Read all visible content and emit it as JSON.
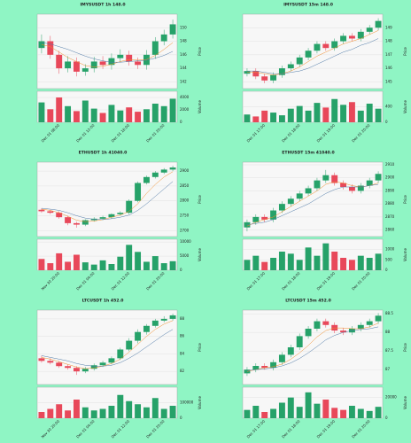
{
  "chart_data": [
    {
      "type": "candlestick",
      "title": "IMYSUSDT 1h 148.0",
      "ylabel": "Price",
      "volume_label": "Volume",
      "up_color": "#26a269",
      "down_color": "#e8485a",
      "categories": [
        null,
        null,
        "Dec 01 08:00",
        null,
        null,
        null,
        "Dec 01 12:00",
        null,
        null,
        null,
        "Dec 01 16:00",
        null,
        null,
        null,
        "Dec 01 20:00",
        null
      ],
      "open": [
        147,
        148,
        146,
        144,
        145,
        143.5,
        144,
        145,
        144.5,
        145.5,
        146,
        145,
        144.5,
        146,
        148,
        149
      ],
      "high": [
        149,
        148.8,
        146.6,
        145.8,
        145.6,
        144.6,
        145.7,
        145.8,
        146.2,
        146.8,
        146.6,
        145.6,
        146.7,
        148.6,
        149.7,
        151.2
      ],
      "low": [
        146.2,
        145.4,
        143.2,
        143.4,
        142.8,
        142.9,
        143.4,
        143.9,
        143.8,
        144.9,
        144.4,
        143.9,
        143.8,
        145.4,
        147.4,
        148.4
      ],
      "close": [
        148,
        146,
        144,
        145,
        143.5,
        144,
        145,
        144.5,
        145.5,
        146,
        145,
        144.5,
        146,
        148,
        149,
        150.5
      ],
      "volume": [
        3200,
        2100,
        4000,
        2600,
        1800,
        3500,
        2200,
        1500,
        2800,
        1900,
        2400,
        1700,
        2100,
        3000,
        2600,
        3800
      ],
      "series": [
        {
          "color": "#f28e2b",
          "values": [
            147.5,
            147.2,
            146.4,
            145.6,
            145,
            144.4,
            144.2,
            144.3,
            144.6,
            145,
            145.3,
            145.2,
            145.3,
            145.9,
            146.8,
            147.8
          ]
        },
        {
          "color": "#4e79a7",
          "values": [
            147.8,
            147.6,
            147.2,
            146.8,
            146.3,
            145.8,
            145.4,
            145.1,
            144.9,
            144.9,
            145,
            145.1,
            145.2,
            145.5,
            145.9,
            146.5
          ]
        }
      ],
      "ylim": [
        141,
        152
      ],
      "yticks": [
        142,
        144,
        146,
        148,
        150
      ],
      "vlim": [
        0,
        5000
      ],
      "vticks": [
        0,
        2000,
        4000
      ]
    },
    {
      "type": "candlestick",
      "title": "IMYSUSDT 15m 148.0",
      "ylabel": "Price",
      "volume_label": "Volume",
      "up_color": "#26a269",
      "down_color": "#e8485a",
      "categories": [
        null,
        null,
        "Dec 01 17:00",
        null,
        null,
        null,
        "Dec 01 18:00",
        null,
        null,
        null,
        "Dec 01 19:00",
        null,
        null,
        null,
        "Dec 01 20:00",
        null
      ],
      "open": [
        145.6,
        145.8,
        145.4,
        145.1,
        145.5,
        146,
        146.3,
        146.8,
        147.3,
        147.8,
        147.5,
        148,
        148.4,
        148.2,
        148.7,
        149
      ],
      "high": [
        146,
        146,
        145.6,
        145.7,
        146.2,
        146.5,
        147,
        147.5,
        148,
        148,
        148.2,
        148.6,
        148.6,
        148.9,
        149.2,
        149.7
      ],
      "low": [
        145.4,
        145.2,
        144.9,
        144.9,
        145.3,
        145.8,
        146.1,
        146.6,
        147.1,
        147.3,
        147.3,
        147.8,
        148,
        148,
        148.5,
        148.8
      ],
      "close": [
        145.8,
        145.4,
        145.1,
        145.5,
        146,
        146.3,
        146.8,
        147.3,
        147.8,
        147.5,
        148,
        148.4,
        148.2,
        148.7,
        149,
        149.5
      ],
      "volume": [
        200,
        150,
        300,
        250,
        180,
        350,
        420,
        300,
        500,
        380,
        600,
        450,
        520,
        300,
        480,
        350
      ],
      "series": [
        {
          "color": "#f28e2b",
          "values": [
            145.7,
            145.7,
            145.6,
            145.5,
            145.6,
            145.8,
            146.1,
            146.5,
            146.9,
            147.2,
            147.5,
            147.8,
            148,
            148.2,
            148.5,
            148.8
          ]
        },
        {
          "color": "#4e79a7",
          "values": [
            145.8,
            145.8,
            145.7,
            145.6,
            145.6,
            145.7,
            145.8,
            146,
            146.3,
            146.6,
            146.9,
            147.2,
            147.4,
            147.7,
            147.9,
            148.2
          ]
        }
      ],
      "ylim": [
        144.5,
        150
      ],
      "yticks": [
        145,
        146,
        147,
        148,
        149
      ],
      "vlim": [
        0,
        800
      ],
      "vticks": [
        0,
        400
      ]
    },
    {
      "type": "candlestick",
      "title": "ETHUSDT 1h 41040.0",
      "ylabel": "Price",
      "volume_label": "Volume",
      "up_color": "#26a269",
      "down_color": "#e8485a",
      "categories": [
        null,
        null,
        "Nov 30 20:00",
        null,
        null,
        null,
        "Dec 01 04:00",
        null,
        null,
        null,
        "Dec 01 12:00",
        null,
        null,
        null,
        "Dec 01 20:00",
        null
      ],
      "open": [
        2770,
        2765,
        2760,
        2745,
        2725,
        2720,
        2735,
        2740,
        2745,
        2755,
        2760,
        2800,
        2860,
        2880,
        2895,
        2905
      ],
      "high": [
        2775,
        2770,
        2765,
        2750,
        2730,
        2738,
        2745,
        2750,
        2758,
        2765,
        2805,
        2865,
        2885,
        2900,
        2910,
        2918
      ],
      "low": [
        2760,
        2755,
        2740,
        2718,
        2710,
        2715,
        2730,
        2735,
        2740,
        2750,
        2755,
        2795,
        2855,
        2875,
        2890,
        2900
      ],
      "close": [
        2765,
        2760,
        2745,
        2725,
        2720,
        2735,
        2740,
        2745,
        2755,
        2760,
        2800,
        2860,
        2880,
        2895,
        2905,
        2912
      ],
      "volume": [
        4000,
        2500,
        6000,
        3000,
        5500,
        2800,
        2000,
        3500,
        2200,
        4800,
        9000,
        6500,
        3000,
        5000,
        2500,
        3200
      ],
      "series": [
        {
          "color": "#f28e2b",
          "values": [
            2772,
            2768,
            2760,
            2748,
            2735,
            2730,
            2732,
            2737,
            2745,
            2752,
            2765,
            2790,
            2825,
            2855,
            2880,
            2898
          ]
        },
        {
          "color": "#4e79a7",
          "values": [
            2775,
            2772,
            2768,
            2760,
            2750,
            2742,
            2738,
            2737,
            2740,
            2745,
            2752,
            2768,
            2790,
            2815,
            2840,
            2865
          ]
        }
      ],
      "ylim": [
        2680,
        2930
      ],
      "yticks": [
        2700,
        2750,
        2800,
        2850,
        2900
      ],
      "vlim": [
        0,
        11000
      ],
      "vticks": [
        0,
        5000,
        10000
      ]
    },
    {
      "type": "candlestick",
      "title": "ETHUSDT 15m 41040.0",
      "ylabel": "Price",
      "volume_label": "Volume",
      "up_color": "#26a269",
      "down_color": "#e8485a",
      "categories": [
        null,
        null,
        "Dec 01 17:00",
        null,
        null,
        null,
        "Dec 01 18:00",
        null,
        null,
        null,
        "Dec 01 19:00",
        null,
        null,
        null,
        "Dec 01 20:00",
        null
      ],
      "open": [
        2862,
        2866,
        2870,
        2868,
        2875,
        2880,
        2884,
        2888,
        2892,
        2898,
        2902,
        2896,
        2893,
        2890,
        2894,
        2898
      ],
      "high": [
        2868,
        2872,
        2872,
        2877,
        2882,
        2886,
        2890,
        2894,
        2900,
        2906,
        2904,
        2898,
        2895,
        2896,
        2900,
        2905
      ],
      "low": [
        2859,
        2864,
        2866,
        2866,
        2873,
        2878,
        2882,
        2886,
        2890,
        2896,
        2894,
        2891,
        2888,
        2888,
        2892,
        2896
      ],
      "close": [
        2866,
        2870,
        2868,
        2875,
        2880,
        2884,
        2888,
        2892,
        2898,
        2902,
        2896,
        2893,
        2890,
        2894,
        2898,
        2903
      ],
      "volume": [
        500,
        700,
        400,
        600,
        900,
        800,
        500,
        1100,
        700,
        1300,
        900,
        600,
        500,
        700,
        600,
        800
      ],
      "series": [
        {
          "color": "#f28e2b",
          "values": [
            2863,
            2866,
            2868,
            2870,
            2874,
            2878,
            2882,
            2886,
            2890,
            2895,
            2897,
            2896,
            2894,
            2893,
            2894,
            2896
          ]
        },
        {
          "color": "#4e79a7",
          "values": [
            2864,
            2865,
            2866,
            2868,
            2871,
            2874,
            2877,
            2880,
            2884,
            2888,
            2891,
            2893,
            2893,
            2893,
            2894,
            2895
          ]
        }
      ],
      "ylim": [
        2855,
        2912
      ],
      "yticks": [
        2860,
        2870,
        2880,
        2890,
        2900,
        2910
      ],
      "vlim": [
        0,
        1500
      ],
      "vticks": [
        0,
        500,
        1000
      ]
    },
    {
      "type": "candlestick",
      "title": "LTCUSDT 1h 452.0",
      "ylabel": "Price",
      "volume_label": "Volume",
      "up_color": "#26a269",
      "down_color": "#e8485a",
      "categories": [
        null,
        null,
        "Nov 30 20:00",
        null,
        null,
        null,
        "Dec 01 04:00",
        null,
        null,
        null,
        "Dec 01 12:00",
        null,
        null,
        null,
        "Dec 01 20:00",
        null
      ],
      "open": [
        83.5,
        83.2,
        83,
        82.6,
        82.4,
        82,
        82.3,
        82.7,
        83,
        83.5,
        84.5,
        85.5,
        86.5,
        87.2,
        87.8,
        88
      ],
      "high": [
        83.8,
        83.5,
        83.2,
        82.8,
        82.6,
        82.5,
        82.9,
        83.2,
        83.7,
        84.7,
        85.8,
        86.8,
        87.4,
        88,
        88.3,
        88.6
      ],
      "low": [
        83,
        82.8,
        82.4,
        82.2,
        81.6,
        81.8,
        82.1,
        82.5,
        82.8,
        83.3,
        84.3,
        85.2,
        86.2,
        87,
        87.6,
        87.8
      ],
      "close": [
        83.2,
        83,
        82.6,
        82.4,
        82,
        82.3,
        82.7,
        83,
        83.5,
        84.5,
        85.5,
        86.5,
        87.2,
        87.8,
        88,
        88.4
      ],
      "volume": [
        40000,
        60000,
        90000,
        50000,
        120000,
        70000,
        50000,
        60000,
        80000,
        150000,
        110000,
        90000,
        70000,
        130000,
        60000,
        80000
      ],
      "series": [
        {
          "color": "#f28e2b",
          "values": [
            83.6,
            83.4,
            83.1,
            82.8,
            82.5,
            82.3,
            82.4,
            82.6,
            82.9,
            83.4,
            84.2,
            85.1,
            86,
            86.8,
            87.4,
            87.8
          ]
        },
        {
          "color": "#4e79a7",
          "values": [
            83.8,
            83.6,
            83.4,
            83.2,
            82.9,
            82.7,
            82.6,
            82.6,
            82.7,
            83,
            83.5,
            84.1,
            84.8,
            85.5,
            86.2,
            86.8
          ]
        }
      ],
      "ylim": [
        80.5,
        89
      ],
      "yticks": [
        82,
        84,
        86,
        88
      ],
      "vlim": [
        0,
        200000
      ],
      "vticks": [
        0,
        100000
      ]
    },
    {
      "type": "candlestick",
      "title": "LTCUSDT 15m 452.0",
      "ylabel": "Price",
      "volume_label": "Volume",
      "up_color": "#26a269",
      "down_color": "#e8485a",
      "categories": [
        null,
        null,
        "Dec 01 17:00",
        null,
        null,
        null,
        "Dec 01 18:00",
        null,
        null,
        null,
        "Dec 01 19:00",
        null,
        null,
        null,
        "Dec 01 20:00",
        null
      ],
      "open": [
        86.9,
        87,
        87.1,
        87.05,
        87.2,
        87.4,
        87.6,
        87.9,
        88.1,
        88.3,
        88.2,
        88.05,
        88,
        88.1,
        88.2,
        88.3
      ],
      "high": [
        87.07,
        87.17,
        87.17,
        87.27,
        87.47,
        87.67,
        87.97,
        88.17,
        88.37,
        88.37,
        88.27,
        88.12,
        88.17,
        88.27,
        88.37,
        88.52
      ],
      "low": [
        86.83,
        86.93,
        87.0,
        86.98,
        87.13,
        87.33,
        87.53,
        87.83,
        88.03,
        88.13,
        87.98,
        87.93,
        87.93,
        88.03,
        88.13,
        88.23
      ],
      "close": [
        87,
        87.1,
        87.05,
        87.2,
        87.4,
        87.6,
        87.9,
        88.1,
        88.3,
        88.2,
        88.05,
        88,
        88.1,
        88.2,
        88.3,
        88.45
      ],
      "volume": [
        8000,
        12000,
        6000,
        9000,
        15000,
        20000,
        11000,
        25000,
        14000,
        18000,
        10000,
        8000,
        12000,
        9000,
        7000,
        11000
      ],
      "series": [
        {
          "color": "#f28e2b",
          "values": [
            86.95,
            87,
            87.05,
            87.08,
            87.15,
            87.28,
            87.45,
            87.65,
            87.88,
            88.05,
            88.12,
            88.12,
            88.1,
            88.1,
            88.15,
            88.25
          ]
        },
        {
          "color": "#4e79a7",
          "values": [
            86.97,
            87,
            87.02,
            87.05,
            87.1,
            87.18,
            87.3,
            87.45,
            87.62,
            87.8,
            87.92,
            88,
            88.05,
            88.08,
            88.1,
            88.15
          ]
        }
      ],
      "ylim": [
        86.6,
        88.6
      ],
      "yticks": [
        87,
        87.5,
        88,
        88.5
      ],
      "vlim": [
        0,
        30000
      ],
      "vticks": [
        0,
        20000
      ]
    }
  ]
}
